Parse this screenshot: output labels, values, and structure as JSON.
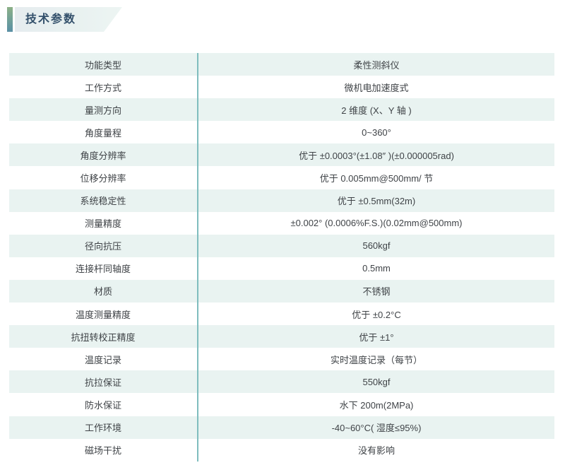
{
  "section": {
    "title": "技术参数"
  },
  "colors": {
    "accent_bar_top": "#8cb086",
    "accent_bar_bottom": "#5a90a5",
    "banner_bg": "#e8f1f0",
    "title_text": "#33506b",
    "row_alt_bg": "#e9f3f1",
    "divider_teal": "#7fbdbe",
    "cell_text": "#3f4347"
  },
  "table": {
    "rows": [
      {
        "param": "功能类型",
        "value": "柔性测斜仪"
      },
      {
        "param": "工作方式",
        "value": "微机电加速度式"
      },
      {
        "param": "量测方向",
        "value": "2 维度 (X、Y 轴 )"
      },
      {
        "param": "角度量程",
        "value": "0~360°"
      },
      {
        "param": "角度分辨率",
        "value": "优于 ±0.0003°(±1.08″ )(±0.000005rad)"
      },
      {
        "param": "位移分辨率",
        "value": "优于 0.005mm@500mm/ 节"
      },
      {
        "param": "系统稳定性",
        "value": "优于 ±0.5mm(32m)"
      },
      {
        "param": "测量精度",
        "value": "±0.002° (0.0006%F.S.)(0.02mm@500mm)"
      },
      {
        "param": "径向抗压",
        "value": "560kgf"
      },
      {
        "param": "连接杆同轴度",
        "value": "0.5mm"
      },
      {
        "param": "材质",
        "value": "不锈钢"
      },
      {
        "param": "温度测量精度",
        "value": "优于 ±0.2°C"
      },
      {
        "param": "抗扭转校正精度",
        "value": "优于 ±1°"
      },
      {
        "param": "温度记录",
        "value": "实时温度记录（每节）"
      },
      {
        "param": "抗拉保证",
        "value": "550kgf"
      },
      {
        "param": "防水保证",
        "value": "水下 200m(2MPa)"
      },
      {
        "param": "工作环境",
        "value": "-40~60°C( 湿度≤95%)"
      },
      {
        "param": "磁场干扰",
        "value": "没有影响"
      }
    ]
  }
}
